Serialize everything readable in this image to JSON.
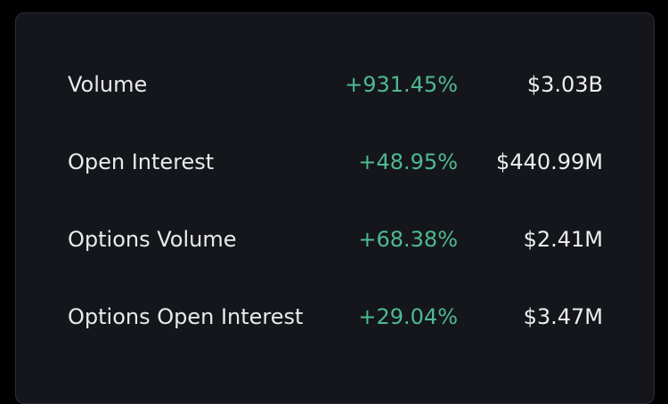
{
  "rows": [
    {
      "label": "Volume",
      "change": "+931.45%",
      "value": "$3.03B"
    },
    {
      "label": "Open Interest",
      "change": "+48.95%",
      "value": "$440.99M"
    },
    {
      "label": "Options Volume",
      "change": "+68.38%",
      "value": "$2.41M"
    },
    {
      "label": "Options Open Interest",
      "change": "+29.04%",
      "value": "$3.47M"
    }
  ]
}
